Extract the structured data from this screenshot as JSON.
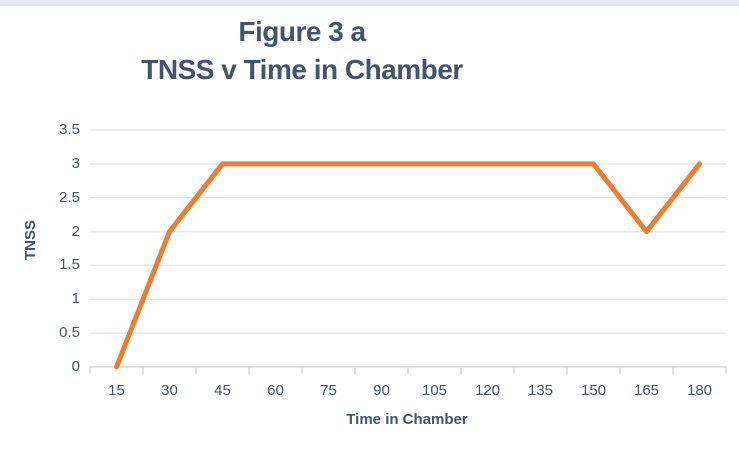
{
  "page": {
    "title_line1": "Figure 3 a",
    "title_line2": "TNSS v Time in Chamber"
  },
  "chart_data": {
    "type": "line",
    "title": "Figure 3 a — TNSS v Time in Chamber",
    "categories": [
      15,
      30,
      45,
      60,
      75,
      90,
      105,
      120,
      135,
      150,
      165,
      180
    ],
    "series": [
      {
        "name": "TNSS",
        "values": [
          0,
          2,
          3,
          3,
          3,
          3,
          3,
          3,
          3,
          3,
          2,
          3
        ]
      }
    ],
    "xlabel": "Time in Chamber",
    "ylabel": "TNSS",
    "ylim": [
      0,
      3.5
    ],
    "ytick_values": [
      0,
      0.5,
      1,
      1.5,
      2,
      2.5,
      3,
      3.5
    ],
    "ytick_labels": [
      "0",
      "0.5",
      "1",
      "1.5",
      "2",
      "2.5",
      "3",
      "3.5"
    ],
    "grid": true,
    "legend": "none",
    "colors": {
      "series_line": "#ED7D31",
      "title_text": "#44546A",
      "axis_text": "#44546A",
      "gridline": "#E4E7EB",
      "axis_line": "#D6DAE0",
      "top_bar": "#E7E9EC"
    }
  }
}
